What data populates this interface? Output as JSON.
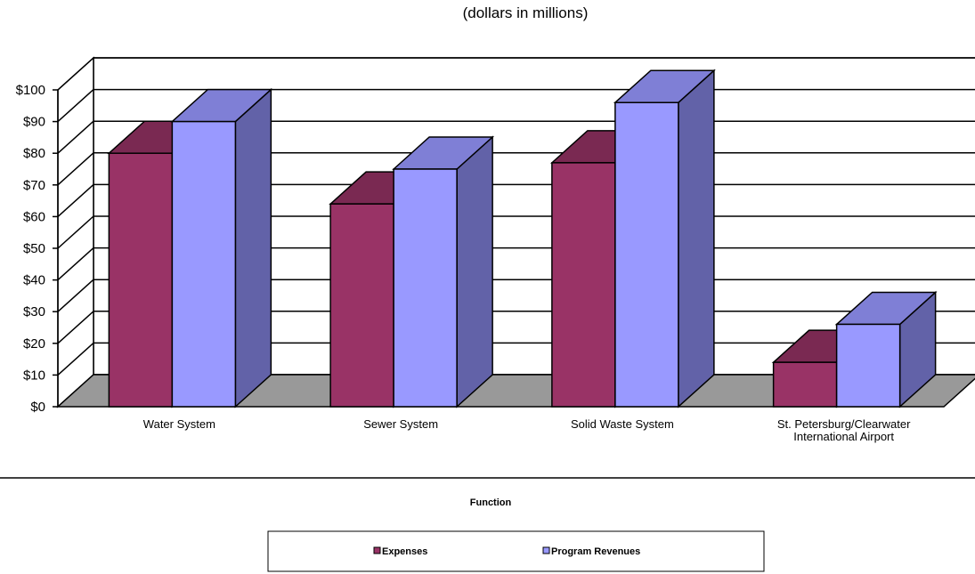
{
  "chart_data": {
    "type": "bar",
    "subtitle": "(dollars in millions)",
    "xlabel": "Function",
    "ylabel": "",
    "ylim": [
      0,
      100
    ],
    "yticks": [
      "$0",
      "$10",
      "$20",
      "$30",
      "$40",
      "$50",
      "$60",
      "$70",
      "$80",
      "$90",
      "$100"
    ],
    "categories": [
      [
        "Water System"
      ],
      [
        "Sewer System"
      ],
      [
        "Solid Waste System"
      ],
      [
        "St. Petersburg/Clearwater",
        "International Airport"
      ]
    ],
    "series": [
      {
        "name": "Expenses",
        "values": [
          80,
          64,
          77,
          14
        ],
        "color": "#993366",
        "top_color": "#7a2952",
        "side_color": "#5c1f3d"
      },
      {
        "name": "Program Revenues",
        "values": [
          90,
          75,
          96,
          26
        ],
        "color": "#9999ff",
        "top_color": "#7f7fd6",
        "side_color": "#6262a8"
      }
    ],
    "grid": true,
    "floor_color": "#999999",
    "legend_position": "bottom"
  }
}
